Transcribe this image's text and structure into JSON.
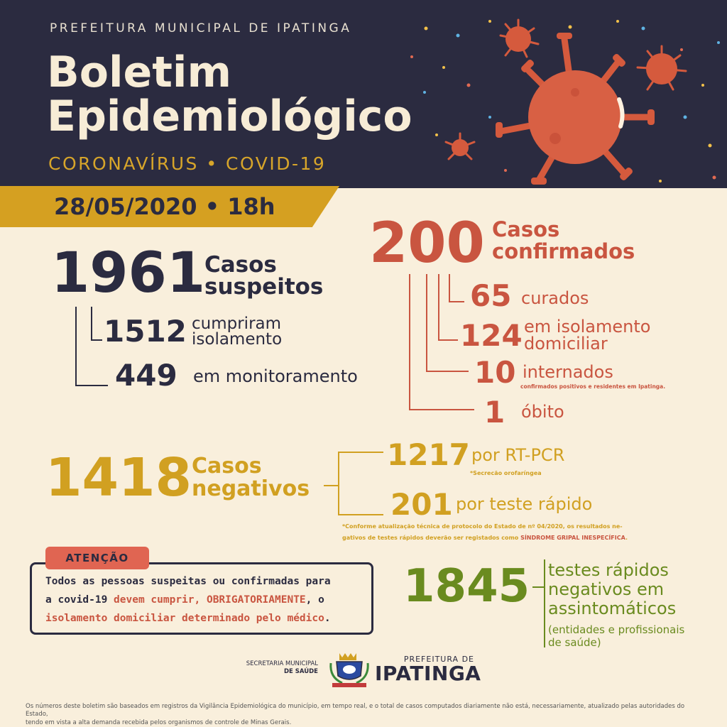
{
  "header": {
    "org": "PREFEITURA MUNICIPAL DE IPATINGA",
    "title_line1": "Boletim",
    "title_line2": "Epidemiológico",
    "subtitle": "CORONAVÍRUS • COVID-19",
    "date": "28/05/2020 • 18h"
  },
  "suspeitos": {
    "total": "1961",
    "label_line1": "Casos",
    "label_line2": "suspeitos",
    "isolamento_value": "1512",
    "isolamento_line1": "cumpriram",
    "isolamento_line2": "isolamento",
    "monitoramento_value": "449",
    "monitoramento_label": "em monitoramento"
  },
  "confirmados": {
    "total": "200",
    "label_line1": "Casos",
    "label_line2": "confirmados",
    "curados_value": "65",
    "curados_label": "curados",
    "isolamento_value": "124",
    "isolamento_line1": "em isolamento",
    "isolamento_line2": "domiciliar",
    "internados_value": "10",
    "internados_label": "internados",
    "internados_note": "confirmados positivos e residentes em Ipatinga.",
    "obito_value": "1",
    "obito_label": "óbito"
  },
  "negativos": {
    "total": "1418",
    "label_line1": "Casos",
    "label_line2": "negativos",
    "rtpcr_value": "1217",
    "rtpcr_label": "por RT-PCR",
    "rtpcr_note": "*Secrecão orofaríngea",
    "rapido_value": "201",
    "rapido_label": "por teste rápido",
    "note_line1": "*Conforme atualização técnica de protocolo do Estado de nº 04/2020, os resultados ne-",
    "note_line2_a": "gativos de testes rápidos deverão ser registados como ",
    "note_line2_b": "SÍNDROME GRIPAL INESPECÍFICA",
    "note_line2_c": "."
  },
  "atencao": {
    "badge": "ATENÇÃO",
    "line1": "Todos as pessoas suspeitas ou confirmadas para",
    "line2_a": "a covid-19 ",
    "line2_b": "devem cumprir, OBRIGATORIAMENTE",
    "line2_c": ", o",
    "line3_a": "isolamento domiciliar determinado pelo médico",
    "line3_b": "."
  },
  "testes": {
    "value": "1845",
    "line1": "testes rápidos",
    "line2": "negativos em",
    "line3": "assintomáticos",
    "note_line1": "(entidades e profissionais",
    "note_line2": "de saúde)"
  },
  "logos": {
    "secretaria_line1": "SECRETARIA MUNICIPAL",
    "secretaria_line2": "DE SAÚDE",
    "prefeitura_small": "PREFEITURA DE",
    "prefeitura_big": "IPATINGA"
  },
  "footer": {
    "line1": "Os números deste boletim são baseados em registros da Vigilância Epidemiológica do município, em tempo real, e o total de casos computados diariamente não está, necessariamente, atualizado pelas autoridades do Estado,",
    "line2": "tendo em vista a alta demanda recebida pelos organismos de controle de Minas Gerais."
  },
  "colors": {
    "navy": "#2b2b40",
    "red": "#c95540",
    "gold": "#d1a021",
    "green": "#6a8b1f",
    "cream": "#f9efdc"
  },
  "icons": [
    "virus-icon",
    "coat-of-arms-icon"
  ]
}
